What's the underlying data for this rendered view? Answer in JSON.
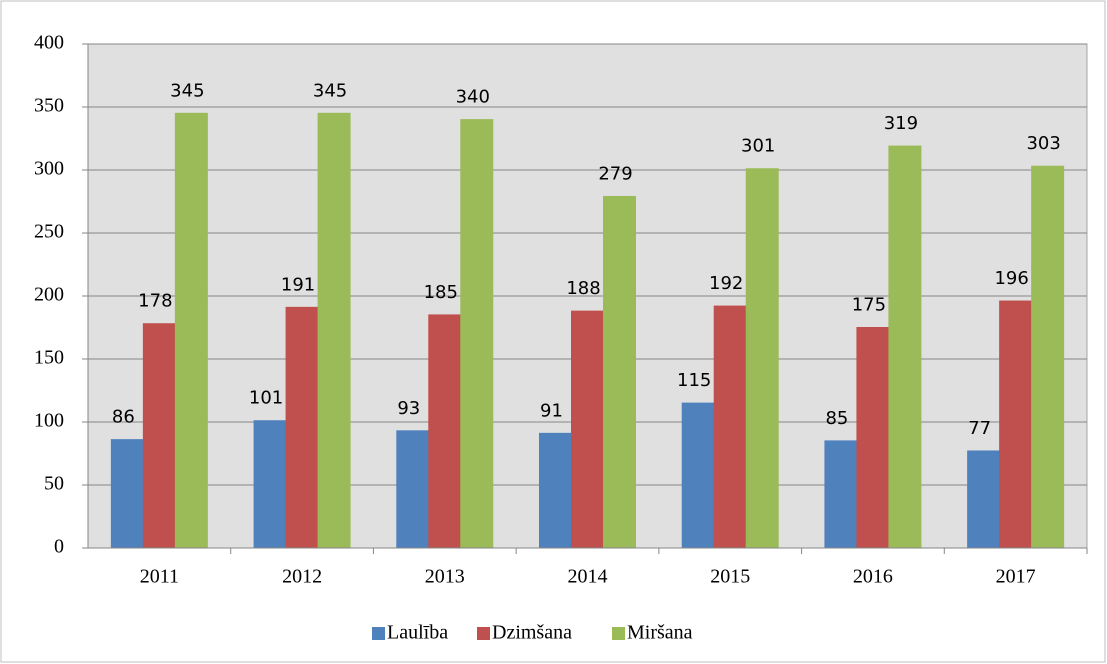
{
  "chart_data": {
    "type": "bar",
    "categories": [
      "2011",
      "2012",
      "2013",
      "2014",
      "2015",
      "2016",
      "2017"
    ],
    "series": [
      {
        "name": "Laulība",
        "color": "#4f81bd",
        "values": [
          86,
          101,
          93,
          91,
          115,
          85,
          77
        ]
      },
      {
        "name": "Dzimšana",
        "color": "#c0504d",
        "values": [
          178,
          191,
          185,
          188,
          192,
          175,
          196
        ]
      },
      {
        "name": "Miršana",
        "color": "#9bbb59",
        "values": [
          345,
          345,
          340,
          279,
          301,
          319,
          303
        ]
      }
    ],
    "ylim": [
      0,
      400
    ],
    "yticks": [
      0,
      50,
      100,
      150,
      200,
      250,
      300,
      350,
      400
    ],
    "grid": true,
    "legend": "bottom"
  }
}
